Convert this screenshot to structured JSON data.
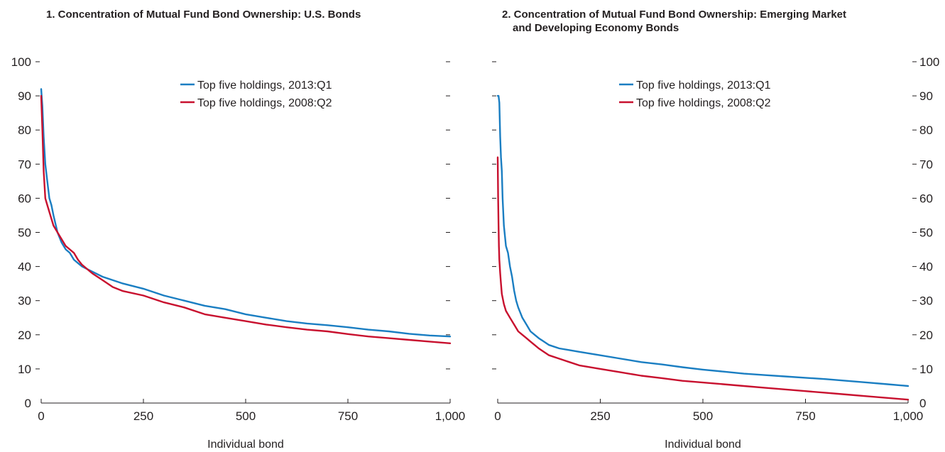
{
  "colors": {
    "s2013": "#1a7ec2",
    "s2008": "#c8102e"
  },
  "chart_data": [
    {
      "type": "line",
      "title": "1. Concentration of Mutual Fund Bond Ownership: U.S. Bonds",
      "xlabel": "Individual bond",
      "ylabel": "",
      "xlim": [
        0,
        1000
      ],
      "ylim": [
        0,
        100
      ],
      "x_ticks": [
        "0",
        "250",
        "500",
        "750",
        "1,000"
      ],
      "y_ticks": [
        "0",
        "10",
        "20",
        "30",
        "40",
        "50",
        "60",
        "70",
        "80",
        "90",
        "100"
      ],
      "legend": "top-center",
      "series": [
        {
          "name": "Top five holdings, 2013:Q1",
          "x": [
            0,
            3,
            6,
            10,
            15,
            20,
            25,
            30,
            40,
            50,
            60,
            70,
            80,
            90,
            100,
            125,
            150,
            200,
            250,
            300,
            350,
            400,
            450,
            500,
            550,
            600,
            650,
            700,
            750,
            800,
            850,
            900,
            950,
            1000
          ],
          "y": [
            92,
            87,
            78,
            70,
            65,
            60,
            58,
            55,
            50,
            47,
            45,
            44,
            42,
            41,
            40,
            38.5,
            37,
            35,
            33.5,
            31.5,
            30,
            28.5,
            27.5,
            26,
            25,
            24,
            23.3,
            22.8,
            22.2,
            21.5,
            21,
            20.3,
            19.8,
            19.5
          ]
        },
        {
          "name": "Top five holdings, 2008:Q2",
          "x": [
            0,
            3,
            6,
            10,
            15,
            20,
            25,
            30,
            40,
            50,
            60,
            70,
            80,
            90,
            100,
            125,
            150,
            175,
            200,
            250,
            300,
            350,
            400,
            450,
            500,
            550,
            600,
            650,
            700,
            750,
            800,
            850,
            900,
            950,
            1000
          ],
          "y": [
            90,
            80,
            68,
            60,
            58,
            56,
            54,
            52,
            50,
            48,
            46,
            45,
            44,
            42,
            40.5,
            38,
            36,
            34,
            32.8,
            31.5,
            29.5,
            28,
            26,
            25,
            24,
            23,
            22.2,
            21.5,
            21,
            20.2,
            19.5,
            19,
            18.5,
            18,
            17.5
          ]
        }
      ]
    },
    {
      "type": "line",
      "title": "2. Concentration of Mutual Fund Bond Ownership: Emerging Market and Developing Economy Bonds",
      "title_lines": [
        "2. Concentration of Mutual Fund Bond Ownership: Emerging Market",
        "and Developing Economy Bonds"
      ],
      "xlabel": "Individual bond",
      "ylabel": "",
      "xlim": [
        0,
        1000
      ],
      "ylim": [
        0,
        100
      ],
      "x_ticks": [
        "0",
        "250",
        "500",
        "750",
        "1,000"
      ],
      "y_ticks": [
        "0",
        "10",
        "20",
        "30",
        "40",
        "50",
        "60",
        "70",
        "80",
        "90",
        "100"
      ],
      "legend": "top-center",
      "series": [
        {
          "name": "Top five holdings, 2013:Q1",
          "x": [
            0,
            2,
            4,
            6,
            8,
            10,
            12,
            15,
            20,
            25,
            30,
            35,
            40,
            45,
            50,
            60,
            70,
            80,
            90,
            100,
            125,
            150,
            175,
            200,
            250,
            300,
            350,
            400,
            450,
            500,
            550,
            600,
            650,
            700,
            750,
            800,
            850,
            900,
            950,
            1000
          ],
          "y": [
            90,
            90,
            88,
            78,
            72,
            68,
            60,
            52,
            46,
            44,
            40,
            37,
            33,
            30,
            28,
            25,
            23,
            21,
            20,
            19,
            17,
            16,
            15.5,
            15,
            14,
            13,
            12,
            11.3,
            10.5,
            9.8,
            9.2,
            8.6,
            8.2,
            7.8,
            7.4,
            7,
            6.5,
            6,
            5.5,
            5
          ]
        },
        {
          "name": "Top five holdings, 2008:Q2",
          "x": [
            0,
            1,
            2,
            3,
            4,
            6,
            8,
            10,
            15,
            20,
            30,
            40,
            50,
            60,
            70,
            80,
            90,
            100,
            125,
            150,
            175,
            200,
            250,
            300,
            350,
            400,
            450,
            500,
            550,
            600,
            650,
            700,
            750,
            800,
            850,
            900,
            950,
            1000
          ],
          "y": [
            72,
            60,
            52,
            46,
            42,
            38,
            35,
            32,
            29,
            27,
            25,
            23,
            21,
            20,
            19,
            18,
            17,
            16,
            14,
            13,
            12,
            11,
            10,
            9,
            8,
            7.3,
            6.5,
            6,
            5.5,
            5,
            4.5,
            4,
            3.5,
            3,
            2.5,
            2,
            1.5,
            1
          ]
        }
      ]
    }
  ]
}
